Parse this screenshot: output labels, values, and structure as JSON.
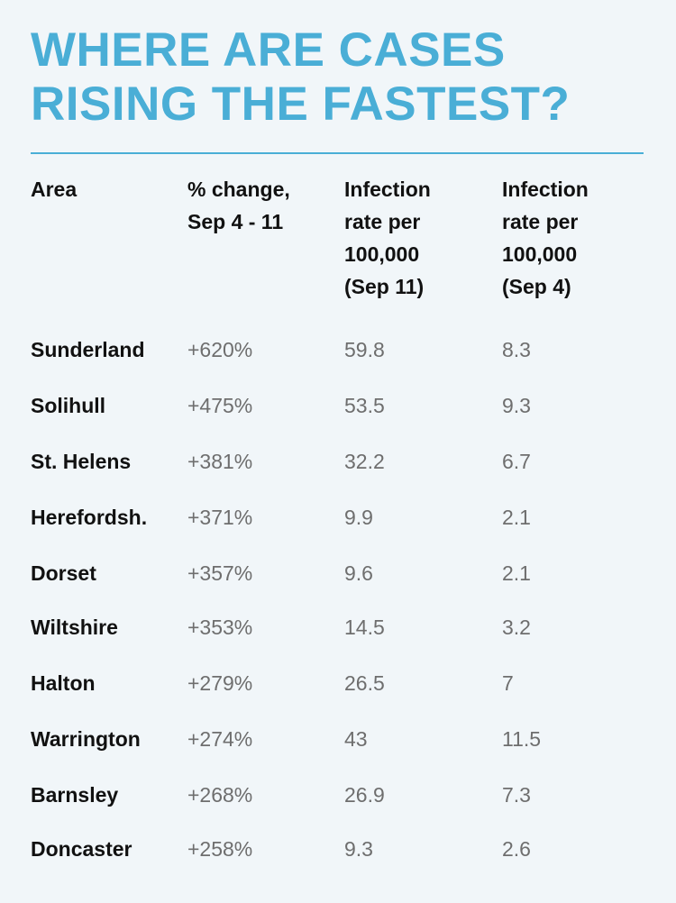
{
  "title_lines": [
    "WHERE ARE CASES",
    "RISING THE FASTEST?"
  ],
  "colors": {
    "accent": "#4aaed6",
    "background": "#f1f6f9",
    "label": "#111111",
    "value": "#6e6e6e"
  },
  "chart_data": {
    "type": "table",
    "title": "WHERE ARE CASES RISING THE FASTEST?",
    "columns": [
      "Area",
      "% change, Sep 4 - 11",
      "Infection rate per 100,000 (Sep 11)",
      "Infection rate per 100,000 (Sep 4)"
    ],
    "column_header_lines": [
      [
        "Area"
      ],
      [
        "% change,",
        "Sep 4 - 11"
      ],
      [
        "Infection",
        "rate per",
        "100,000",
        "(Sep 11)"
      ],
      [
        "Infection",
        "rate per",
        "100,000",
        "(Sep 4)"
      ]
    ],
    "rows": [
      {
        "area": "Sunderland",
        "pct_change": "+620%",
        "rate_sep11": "59.8",
        "rate_sep4": "8.3"
      },
      {
        "area": "Solihull",
        "pct_change": "+475%",
        "rate_sep11": "53.5",
        "rate_sep4": "9.3"
      },
      {
        "area": "St. Helens",
        "pct_change": "+381%",
        "rate_sep11": "32.2",
        "rate_sep4": "6.7"
      },
      {
        "area": "Herefordsh.",
        "pct_change": "+371%",
        "rate_sep11": "9.9",
        "rate_sep4": "2.1"
      },
      {
        "area": "Dorset",
        "pct_change": "+357%",
        "rate_sep11": "9.6",
        "rate_sep4": "2.1"
      },
      {
        "area": "Wiltshire",
        "pct_change": "+353%",
        "rate_sep11": "14.5",
        "rate_sep4": "3.2"
      },
      {
        "area": "Halton",
        "pct_change": "+279%",
        "rate_sep11": "26.5",
        "rate_sep4": "7"
      },
      {
        "area": "Warrington",
        "pct_change": "+274%",
        "rate_sep11": "43",
        "rate_sep4": "11.5"
      },
      {
        "area": "Barnsley",
        "pct_change": "+268%",
        "rate_sep11": "26.9",
        "rate_sep4": "7.3"
      },
      {
        "area": "Doncaster",
        "pct_change": "+258%",
        "rate_sep11": "9.3",
        "rate_sep4": "2.6"
      }
    ]
  }
}
